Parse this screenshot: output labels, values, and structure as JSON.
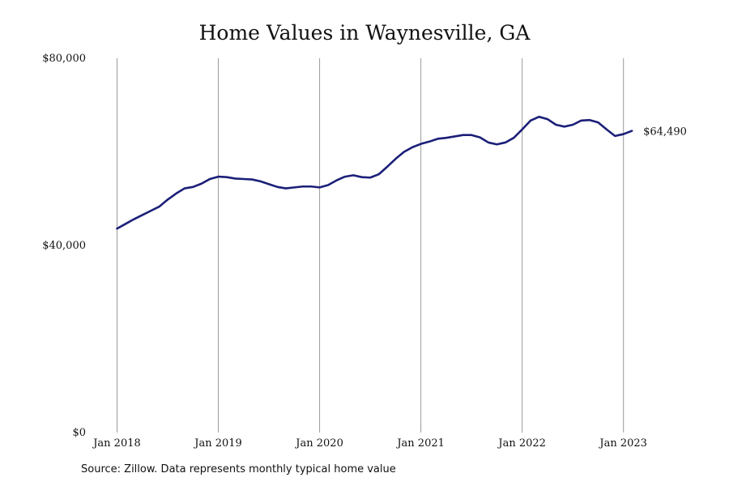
{
  "chart_data": {
    "type": "line",
    "title": "Home Values in Waynesville, GA",
    "xlabel": "",
    "ylabel": "",
    "ylim": [
      0,
      80000
    ],
    "y_ticks": [
      {
        "value": 0,
        "label": "$0"
      },
      {
        "value": 40000,
        "label": "$40,000"
      },
      {
        "value": 80000,
        "label": "$80,000"
      }
    ],
    "x_ticks": [
      {
        "value": 0,
        "label": "Jan 2018"
      },
      {
        "value": 12,
        "label": "Jan 2019"
      },
      {
        "value": 24,
        "label": "Jan 2020"
      },
      {
        "value": 36,
        "label": "Jan 2021"
      },
      {
        "value": 48,
        "label": "Jan 2022"
      },
      {
        "value": 60,
        "label": "Jan 2023"
      }
    ],
    "x_range": [
      0,
      61
    ],
    "grid": {
      "vertical": true,
      "horizontal": false
    },
    "line_color": "#1b1f78",
    "grid_color": "#9a9a9a",
    "series": [
      {
        "x": [
          0,
          1,
          2,
          3,
          4,
          5,
          6,
          7,
          8,
          9,
          10,
          11,
          12,
          13,
          14,
          15,
          16,
          17,
          18,
          19,
          20,
          21,
          22,
          23,
          24,
          25,
          26,
          27,
          28,
          29,
          30,
          31,
          32,
          33,
          34,
          35,
          36,
          37,
          38,
          39,
          40,
          41,
          42,
          43,
          44,
          45,
          46,
          47,
          48,
          49,
          50,
          51,
          52,
          53,
          54,
          55,
          56,
          57,
          58,
          59,
          60,
          61
        ],
        "values": [
          43600,
          44600,
          45600,
          46500,
          47400,
          48300,
          49800,
          51100,
          52200,
          52500,
          53200,
          54200,
          54700,
          54600,
          54300,
          54200,
          54100,
          53700,
          53100,
          52500,
          52200,
          52400,
          52600,
          52600,
          52400,
          52900,
          53900,
          54700,
          55000,
          54600,
          54500,
          55200,
          56800,
          58500,
          60000,
          61000,
          61700,
          62200,
          62800,
          63000,
          63300,
          63600,
          63600,
          63100,
          62000,
          61600,
          62000,
          63000,
          64800,
          66700,
          67500,
          67000,
          65800,
          65400,
          65800,
          66700,
          66800,
          66300,
          64800,
          63400,
          63800,
          64490
        ]
      }
    ],
    "annotations": [
      {
        "label": "$64,490",
        "x": 61,
        "y": 64490
      }
    ]
  },
  "source_note": "Source: Zillow. Data represents monthly typical home value"
}
